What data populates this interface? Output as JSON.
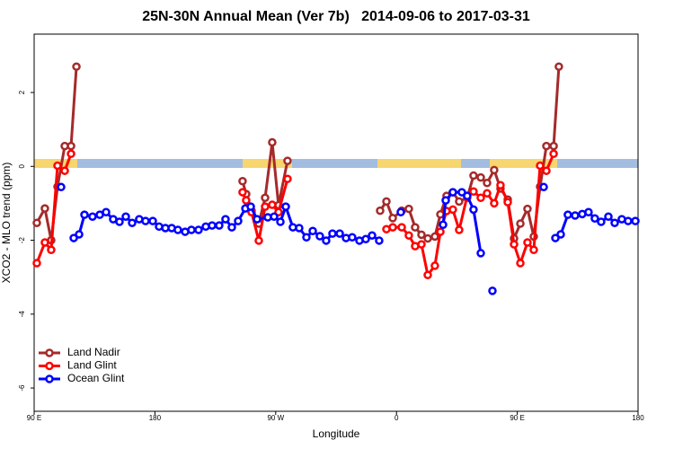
{
  "chart_data": {
    "type": "line",
    "title": "25N-30N Annual Mean (Ver 7b)   2014-09-06 to 2017-03-31",
    "x_label": "Longitude",
    "y_label": "XCO2 - MLO trend (ppm)",
    "xlim": [
      90,
      540
    ],
    "ylim": [
      -6.63,
      3.58
    ],
    "xticks": [
      {
        "value": 90,
        "label": "90 E"
      },
      {
        "value": 180,
        "label": "180"
      },
      {
        "value": 270,
        "label": "90 W"
      },
      {
        "value": 360,
        "label": "0"
      },
      {
        "value": 450,
        "label": "90 E"
      },
      {
        "value": 540,
        "label": "180"
      }
    ],
    "yticks": [
      2,
      0,
      -2,
      -4,
      -6
    ],
    "legend": "bottom-left",
    "series": [
      {
        "name": "Land Nadir",
        "color": "#a52a2a",
        "x": [
          92.0,
          98.0,
          102.7,
          107.4,
          112.8,
          117.5,
          121.5,
          null,
          245.3,
          248.0,
          252.0,
          257.4,
          262.1,
          267.4,
          272.1,
          278.8,
          null,
          347.8,
          352.5,
          357.2,
          363.9,
          369.2,
          373.9,
          378.6,
          383.3,
          388.6,
          392.7,
          397.3,
          402.0,
          406.7,
          412.7,
          417.4,
          422.8,
          427.5,
          432.8,
          437.5,
          442.9,
          447.6,
          452.3,
          457.6,
          462.3,
          467.0,
          471.7,
          477.1,
          481.0
        ],
        "values": [
          -1.53,
          -1.14,
          -2.0,
          -0.55,
          0.55,
          0.55,
          2.7,
          null,
          -0.4,
          -0.75,
          -1.2,
          -1.55,
          -0.85,
          0.65,
          -1.05,
          0.15,
          null,
          -1.2,
          -0.95,
          -1.4,
          -1.2,
          -1.15,
          -1.65,
          -1.85,
          -1.95,
          -1.9,
          -1.3,
          -0.8,
          -0.7,
          -0.95,
          -0.85,
          -0.25,
          -0.3,
          -0.45,
          -0.1,
          -0.6,
          -0.9,
          -1.95,
          -1.55,
          -1.15,
          -1.9,
          -0.55,
          0.55,
          0.55,
          2.7
        ]
      },
      {
        "name": "Land Glint",
        "color": "#ff0000",
        "x": [
          92.0,
          98.0,
          102.7,
          107.4,
          112.8,
          117.5,
          null,
          245.3,
          248.0,
          252.0,
          257.4,
          262.1,
          267.4,
          272.1,
          278.8,
          null,
          352.5,
          357.2,
          363.9,
          369.2,
          373.9,
          378.6,
          383.3,
          388.6,
          392.7,
          397.3,
          402.0,
          406.7,
          412.7,
          417.4,
          422.8,
          427.5,
          432.8,
          437.5,
          442.9,
          447.6,
          452.3,
          457.6,
          462.3,
          467.0,
          471.7,
          477.1
        ],
        "values": [
          -2.62,
          -2.06,
          -2.26,
          0.02,
          -0.12,
          0.34,
          null,
          -0.7,
          -0.92,
          -1.24,
          -2.01,
          -1.09,
          -1.04,
          -1.24,
          -0.34,
          null,
          -1.7,
          -1.65,
          -1.65,
          -1.87,
          -2.16,
          -2.11,
          -2.94,
          -2.69,
          -1.77,
          -1.21,
          -1.17,
          -1.72,
          -0.8,
          -0.68,
          -0.85,
          -0.73,
          -1.0,
          -0.51,
          -0.97,
          -2.11,
          -2.62,
          -2.06,
          -2.26,
          0.02,
          -0.12,
          0.34
        ]
      },
      {
        "name": "Ocean Glint",
        "color": "#0000ff",
        "x": [
          110.1,
          null,
          119.5,
          123.5,
          127.5,
          133.5,
          138.9,
          143.6,
          148.9,
          153.6,
          158.3,
          163.0,
          168.3,
          173.0,
          178.4,
          183.1,
          187.8,
          192.5,
          197.1,
          202.5,
          207.2,
          212.5,
          217.9,
          222.6,
          227.9,
          232.6,
          237.3,
          242.0,
          247.4,
          251.4,
          256.1,
          264.1,
          268.8,
          273.5,
          277.5,
          282.8,
          287.5,
          292.9,
          297.6,
          302.9,
          307.6,
          312.3,
          317.7,
          322.4,
          327.0,
          332.4,
          337.1,
          341.8,
          347.1,
          null,
          363.2,
          null,
          394.7,
          396.7,
          402.0,
          408.7,
          412.7,
          417.4,
          422.8,
          null,
          431.5,
          null,
          469.7,
          null,
          478.4,
          482.4,
          487.7,
          493.1,
          498.4,
          503.1,
          507.8,
          512.5,
          517.9,
          522.6,
          527.9,
          532.6,
          538.0
        ],
        "values": [
          -0.56,
          null,
          -1.94,
          -1.84,
          -1.31,
          -1.36,
          -1.31,
          -1.24,
          -1.43,
          -1.5,
          -1.36,
          -1.53,
          -1.43,
          -1.48,
          -1.48,
          -1.63,
          -1.67,
          -1.67,
          -1.72,
          -1.77,
          -1.72,
          -1.72,
          -1.63,
          -1.6,
          -1.6,
          -1.43,
          -1.65,
          -1.48,
          -1.14,
          -1.09,
          -1.43,
          -1.38,
          -1.36,
          -1.5,
          -1.09,
          -1.65,
          -1.67,
          -1.92,
          -1.75,
          -1.89,
          -2.01,
          -1.82,
          -1.82,
          -1.94,
          -1.92,
          -2.01,
          -1.97,
          -1.87,
          -2.01,
          null,
          -1.24,
          null,
          -1.58,
          -0.92,
          -0.7,
          -0.7,
          -0.8,
          -1.17,
          -2.35,
          null,
          -3.37,
          null,
          -0.56,
          null,
          -1.94,
          -1.84,
          -1.31,
          -1.33,
          -1.29,
          -1.24,
          -1.41,
          -1.5,
          -1.36,
          -1.53,
          -1.43,
          -1.48,
          -1.48
        ]
      }
    ]
  }
}
